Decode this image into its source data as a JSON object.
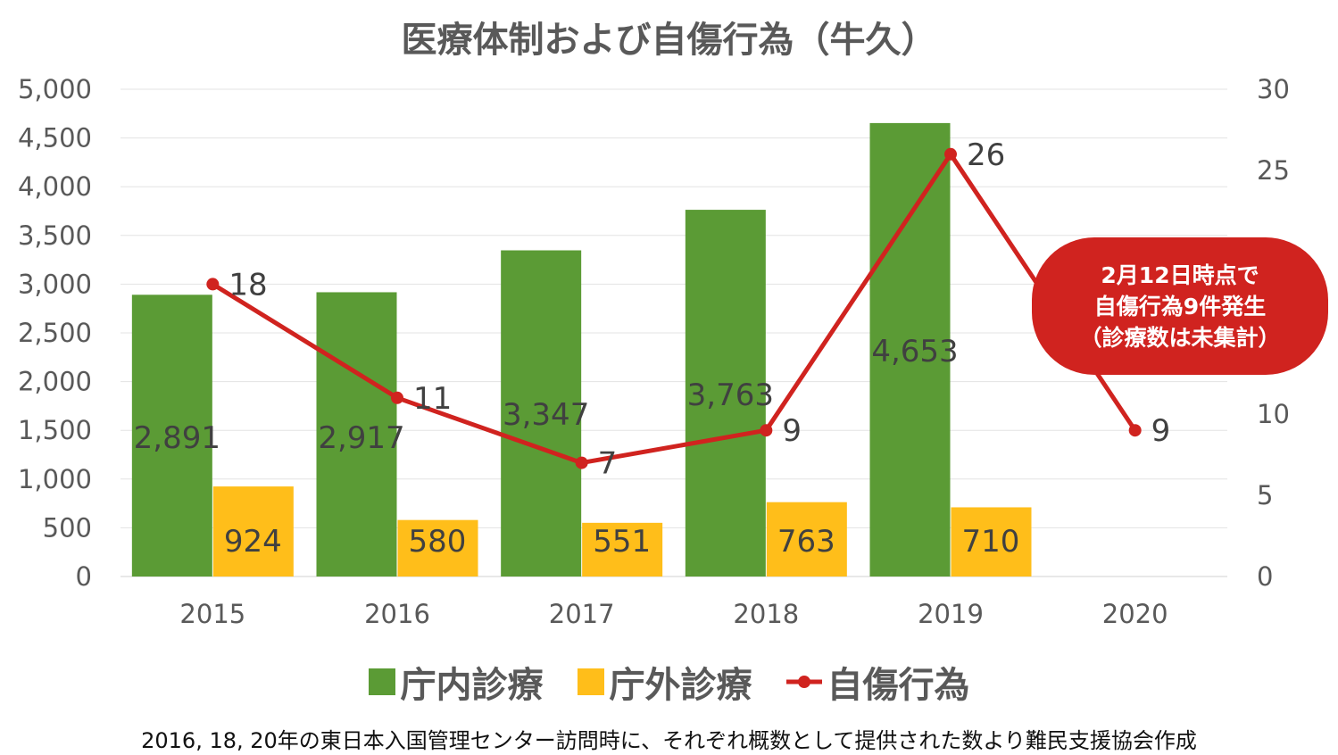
{
  "chart_data": {
    "type": "bar+line",
    "title": "医療体制および自傷行為（牛久）",
    "categories": [
      "2015",
      "2016",
      "2017",
      "2018",
      "2019",
      "2020"
    ],
    "series": [
      {
        "name": "庁内診療",
        "type": "bar",
        "axis": "left",
        "color": "#5b9b35",
        "values": [
          2891,
          2917,
          3347,
          3763,
          4653,
          null
        ],
        "labels": [
          "2,891",
          "2,917",
          "3,347",
          "3,763",
          "4,653",
          ""
        ]
      },
      {
        "name": "庁外診療",
        "type": "bar",
        "axis": "left",
        "color": "#ffbe1a",
        "values": [
          924,
          580,
          551,
          763,
          710,
          null
        ],
        "labels": [
          "924",
          "580",
          "551",
          "763",
          "710",
          ""
        ]
      },
      {
        "name": "自傷行為",
        "type": "line",
        "axis": "right",
        "color": "#d0231f",
        "values": [
          18,
          11,
          7,
          9,
          26,
          9
        ],
        "labels": [
          "18",
          "11",
          "7",
          "9",
          "26",
          "9"
        ]
      }
    ],
    "left_axis": {
      "ylim": [
        0,
        5000
      ],
      "ticks": [
        "0",
        "500",
        "1,000",
        "1,500",
        "2,000",
        "2,500",
        "3,000",
        "3,500",
        "4,000",
        "4,500",
        "5,000"
      ]
    },
    "right_axis": {
      "ylim": [
        0,
        30
      ],
      "ticks": [
        {
          "v": 0,
          "t": "0"
        },
        {
          "v": 5,
          "t": "5"
        },
        {
          "v": 10,
          "t": "10"
        },
        {
          "v": 25,
          "t": "25"
        },
        {
          "v": 30,
          "t": "30"
        }
      ]
    },
    "grid": true,
    "legend": "bottom",
    "annotation": [
      "2月12日時点で",
      "自傷行為9件発生",
      "（診療数は未集計）"
    ]
  },
  "footer": "2016, 18, 20年の東日本入国管理センター訪問時に、それぞれ概数として提供された数より難民支援協会作成"
}
